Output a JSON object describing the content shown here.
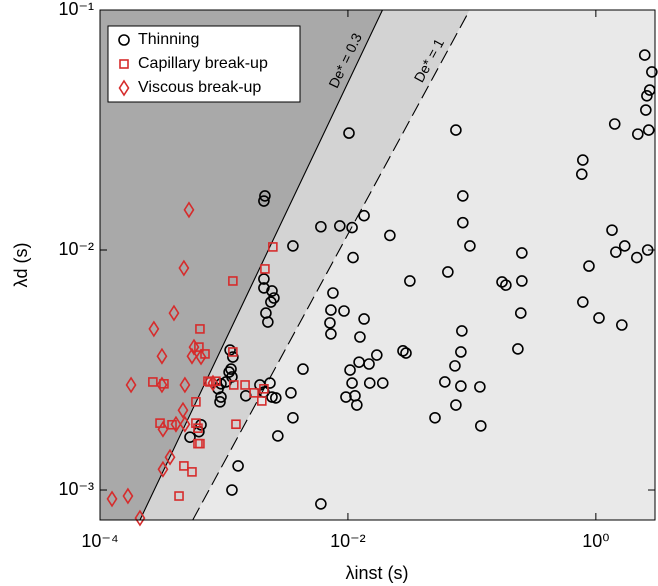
{
  "chart_data": {
    "type": "scatter",
    "xlabel": "λinst (s)",
    "ylabel": "λd (s)",
    "xscale": "log",
    "yscale": "log",
    "xlim": [
      0.0001,
      3
    ],
    "ylim": [
      0.00075,
      0.1
    ],
    "xticks": [
      {
        "value": 0.0001,
        "label": "10⁻⁴"
      },
      {
        "value": 0.01,
        "label": "10⁻²"
      },
      {
        "value": 1,
        "label": "10⁰"
      }
    ],
    "yticks": [
      {
        "value": 0.001,
        "label": "10⁻³"
      },
      {
        "value": 0.01,
        "label": "10⁻²"
      },
      {
        "value": 0.1,
        "label": "10⁻¹"
      }
    ],
    "legend": "upper left",
    "lines": [
      {
        "label": "De* = 0.3",
        "style": "solid",
        "x": [
          0.00021,
          0.019
        ],
        "y": [
          0.00075,
          0.1
        ]
      },
      {
        "label": "De* = 1",
        "style": "dashed",
        "x": [
          0.00056,
          0.096
        ],
        "y": [
          0.00075,
          0.1
        ]
      }
    ],
    "series": [
      {
        "name": "Thinning",
        "marker": "circle",
        "color": "#000000",
        "x": [
          0.0102,
          0.0743,
          0.785,
          0.77,
          1.42,
          2.48,
          2.83,
          2.72,
          2.58,
          2.53,
          2.67,
          2.18,
          1.35,
          1.45,
          1.71,
          2.14,
          2.62,
          0.88,
          0.785,
          1.06,
          1.62,
          0.0036,
          0.00605,
          0.0086,
          0.0108,
          0.0135,
          0.011,
          0.0218,
          0.0845,
          0.0845,
          0.0964,
          0.064,
          0.0316,
          0.00757,
          0.00729,
          0.0093,
          0.00716,
          0.0135,
          0.00729,
          0.0125,
          0.0171,
          0.0148,
          0.0123,
          0.0104,
          0.0108,
          0.015,
          0.0191,
          0.0278,
          0.0294,
          0.0114,
          0.00964,
          0.0118,
          0.083,
          0.0815,
          0.248,
          0.235,
          0.175,
          0.188,
          0.253,
          0.253,
          0.073,
          0.0605,
          0.0815,
          0.116,
          0.0743,
          0.0504,
          0.118,
          0.00434,
          0.00347,
          0.0036,
          0.00272,
          0.00605,
          0.00214,
          0.0021,
          0.0021,
          0.0021,
          0.00244,
          0.00253,
          0.00239,
          0.00218,
          0.00226,
          0.00112,
          0.00118,
          0.00114,
          0.0011,
          0.00116,
          0.00104,
          0.000946,
          0.000896,
          0.000946,
          0.000929,
          0.0015,
          0.00195,
          0.00235,
          0.00244,
          0.0021,
          0.00262,
          0.000653,
          0.000628,
          0.000532,
          0.00116,
          0.0013
        ],
        "values": [
          0.0307,
          0.0316,
          0.0237,
          0.0207,
          0.0335,
          0.0649,
          0.0552,
          0.0464,
          0.0439,
          0.0383,
          0.0316,
          0.0304,
          0.0121,
          0.0098,
          0.0104,
          0.0093,
          0.01,
          0.00857,
          0.00607,
          0.00521,
          0.00487,
          0.0104,
          0.0125,
          0.0126,
          0.0124,
          0.0139,
          0.0093,
          0.0115,
          0.0168,
          0.013,
          0.0104,
          0.0081,
          0.00743,
          0.00662,
          0.00562,
          0.00557,
          0.00497,
          0.00516,
          0.00447,
          0.00434,
          0.00365,
          0.00335,
          0.00341,
          0.00316,
          0.00279,
          0.00279,
          0.00279,
          0.0038,
          0.00372,
          0.00247,
          0.00244,
          0.00226,
          0.0046,
          0.00376,
          0.00546,
          0.00387,
          0.00736,
          0.00714,
          0.00743,
          0.00972,
          0.00329,
          0.00282,
          0.00271,
          0.00269,
          0.00226,
          0.002,
          0.00185,
          0.00319,
          0.00254,
          0.002,
          0.00168,
          0.000875,
          0.0168,
          0.016,
          0.00757,
          0.00695,
          0.00675,
          0.00631,
          0.00607,
          0.00546,
          0.00501,
          0.00383,
          0.00358,
          0.00319,
          0.0031,
          0.00296,
          0.00282,
          0.00277,
          0.00264,
          0.00244,
          0.00233,
          0.00247,
          0.00274,
          0.00279,
          0.00244,
          0.00256,
          0.00242,
          0.00187,
          0.00175,
          0.00166,
          0.001,
          0.00126
        ]
      },
      {
        "name": "Capillary break-up",
        "marker": "square",
        "color": "#d62c2c",
        "x": [
          0.00248,
          0.00214,
          0.00118,
          0.00064,
          0.000628,
          0.00118,
          0.000703,
          0.000861,
          0.0012,
          0.000743,
          0.00148,
          0.00175,
          0.0021,
          0.000267,
          0.000328,
          0.000594,
          0.000617,
          0.000305,
          0.000381,
          0.000594,
          0.000617,
          0.00064,
          0.000475,
          0.000552,
          0.000434,
          0.00125,
          0.00202,
          0.000771
        ],
        "values": [
          0.0103,
          0.00834,
          0.00743,
          0.00469,
          0.00394,
          0.00376,
          0.00369,
          0.00284,
          0.00274,
          0.00284,
          0.00274,
          0.00254,
          0.00264,
          0.00282,
          0.00277,
          0.00233,
          0.00181,
          0.0019,
          0.00187,
          0.0019,
          0.00156,
          0.00156,
          0.00126,
          0.00119,
          0.000944,
          0.00188,
          0.00235,
          0.00282
        ]
      },
      {
        "name": "Viscous break-up",
        "marker": "diamond",
        "color": "#d62c2c",
        "x": [
          0.000522,
          0.000475,
          0.000395,
          0.000272,
          0.000573,
          0.000552,
          0.000316,
          0.000653,
          0.000484,
          0.000178,
          0.000316,
          0.000467,
          0.000322,
          0.00041,
          0.000484,
          0.000367,
          0.000322,
          0.000125,
          0.000168,
          0.00021,
          0.000815
        ],
        "values": [
          0.0147,
          0.00841,
          0.00546,
          0.00469,
          0.00394,
          0.00361,
          0.00361,
          0.00358,
          0.00274,
          0.00274,
          0.00274,
          0.00215,
          0.00179,
          0.00188,
          0.00188,
          0.00137,
          0.00122,
          0.000918,
          0.000944,
          0.000764,
          0.00279
        ]
      }
    ]
  }
}
